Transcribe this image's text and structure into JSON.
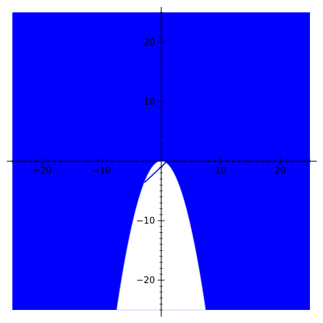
{
  "chart_data": {
    "type": "area",
    "title": "",
    "xlabel": "",
    "ylabel": "",
    "xlim": [
      -25,
      25
    ],
    "ylim": [
      -25,
      25
    ],
    "x_major_ticks": [
      -20,
      -10,
      0,
      10,
      20
    ],
    "y_major_ticks": [
      -20,
      -10,
      10,
      20
    ],
    "x_tick_labels": [
      "−20",
      "−10",
      "10",
      "20"
    ],
    "y_tick_labels": [
      "−20",
      "−10",
      "10",
      "20"
    ],
    "minor_tick_step": 1,
    "grid": false,
    "axes_through_origin": true,
    "region": {
      "name": "",
      "fill_color": "#0000ff",
      "unfilled_boundary": "y = -0.45 x^2",
      "unfilled_side": "below"
    },
    "line_segment": {
      "color": "#0000cc",
      "points": [
        [
          -2.8,
          -3.6
        ],
        [
          0.8,
          -0.2
        ]
      ]
    },
    "background_color": "#ffffff",
    "axis_color": "#000000"
  }
}
